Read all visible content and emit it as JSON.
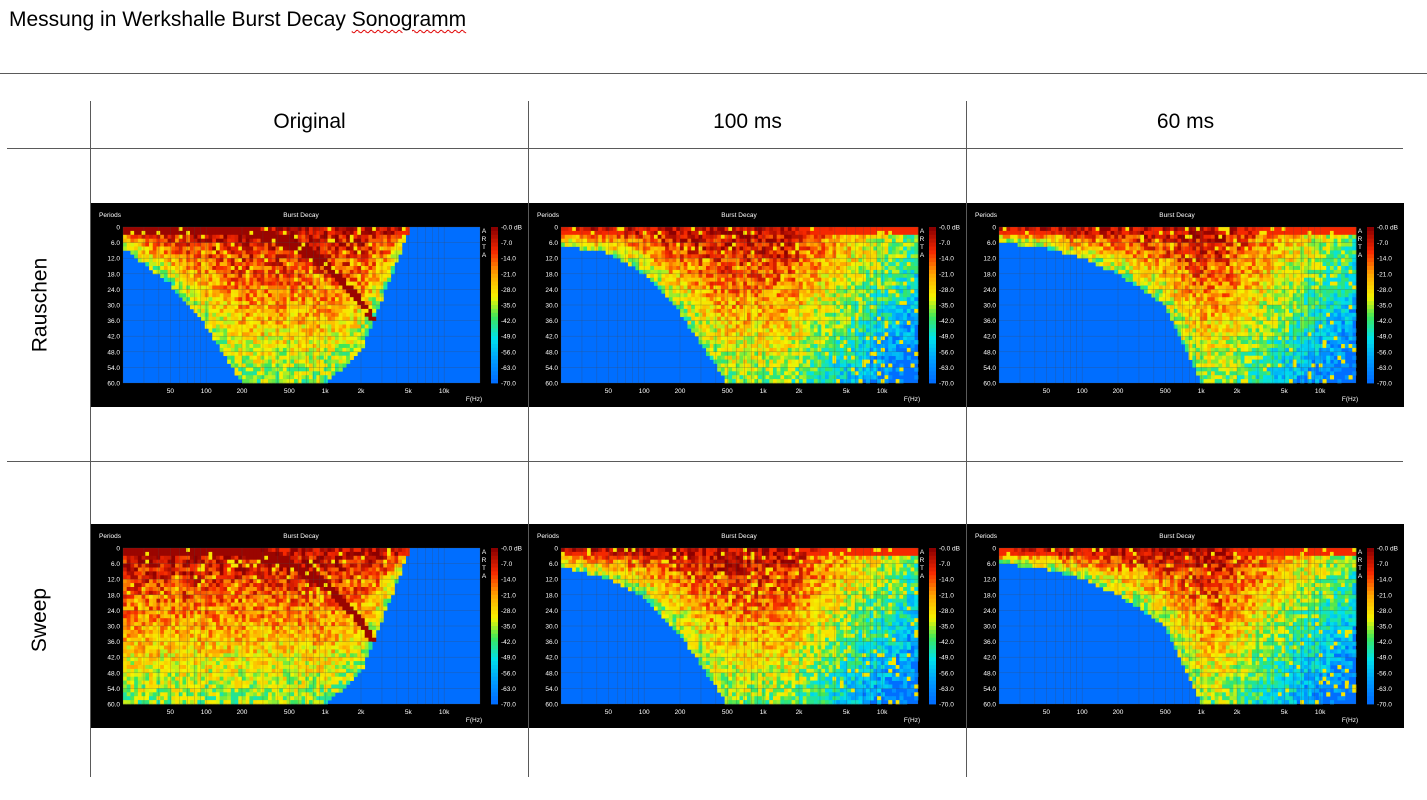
{
  "document": {
    "title_main": "Messung in Werkshalle Burst Decay ",
    "title_flagged": "Sonogramm"
  },
  "table": {
    "columns": [
      "Original",
      "100 ms",
      "60 ms"
    ],
    "rows": [
      "Rauschen",
      "Sweep"
    ]
  },
  "chart_common": {
    "title": "Burst Decay",
    "y_axis_label": "Periods",
    "x_axis_label": "F(Hz)",
    "brand": "ARTA",
    "y_ticks": [
      "0",
      "6.0",
      "12.0",
      "18.0",
      "24.0",
      "30.0",
      "36.0",
      "42.0",
      "48.0",
      "54.0",
      "60.0"
    ],
    "x_ticks": [
      "50",
      "100",
      "200",
      "500",
      "1k",
      "2k",
      "5k",
      "10k"
    ],
    "colorbar_ticks": [
      "-0.0 dB",
      "-7.0",
      "-14.0",
      "-21.0",
      "-28.0",
      "-35.0",
      "-42.0",
      "-49.0",
      "-56.0",
      "-63.0",
      "-70.0"
    ]
  },
  "chart_data": [
    {
      "type": "heatmap",
      "row": "Rauschen",
      "column": "Original",
      "title": "Burst Decay",
      "xlabel": "F(Hz)",
      "ylabel": "Periods",
      "x_scale": "log",
      "xlim": [
        20,
        20000
      ],
      "ylim": [
        0,
        60
      ],
      "zlim_db": [
        -70,
        0
      ],
      "grid": true,
      "decay_boundary": [
        {
          "f": 20,
          "periods": 8
        },
        {
          "f": 50,
          "periods": 22
        },
        {
          "f": 100,
          "periods": 38
        },
        {
          "f": 200,
          "periods": 60
        },
        {
          "f": 500,
          "periods": 60
        },
        {
          "f": 1000,
          "periods": 60
        },
        {
          "f": 2000,
          "periods": 48
        },
        {
          "f": 5000,
          "periods": 2
        }
      ],
      "dark_ridge": [
        {
          "f": 200,
          "periods": 1
        },
        {
          "f": 500,
          "periods": 6
        },
        {
          "f": 1000,
          "periods": 14
        },
        {
          "f": 2000,
          "periods": 28
        },
        {
          "f": 4000,
          "periods": 52
        }
      ],
      "hf_cutoff_hz": 5000
    },
    {
      "type": "heatmap",
      "row": "Rauschen",
      "column": "100 ms",
      "title": "Burst Decay",
      "xlabel": "F(Hz)",
      "ylabel": "Periods",
      "x_scale": "log",
      "xlim": [
        20,
        20000
      ],
      "ylim": [
        0,
        60
      ],
      "zlim_db": [
        -70,
        0
      ],
      "grid": true,
      "decay_boundary": [
        {
          "f": 20,
          "periods": 7
        },
        {
          "f": 50,
          "periods": 10
        },
        {
          "f": 100,
          "periods": 18
        },
        {
          "f": 200,
          "periods": 33
        },
        {
          "f": 500,
          "periods": 60
        },
        {
          "f": 1000,
          "periods": 60
        },
        {
          "f": 2000,
          "periods": 60
        },
        {
          "f": 5000,
          "periods": 60
        }
      ],
      "hf_cutoff_hz": 20000
    },
    {
      "type": "heatmap",
      "row": "Rauschen",
      "column": "60 ms",
      "title": "Burst Decay",
      "xlabel": "F(Hz)",
      "ylabel": "Periods",
      "x_scale": "log",
      "xlim": [
        20,
        20000
      ],
      "ylim": [
        0,
        60
      ],
      "zlim_db": [
        -70,
        0
      ],
      "grid": true,
      "decay_boundary": [
        {
          "f": 20,
          "periods": 6
        },
        {
          "f": 50,
          "periods": 8
        },
        {
          "f": 100,
          "periods": 12
        },
        {
          "f": 200,
          "periods": 18
        },
        {
          "f": 500,
          "periods": 30
        },
        {
          "f": 1000,
          "periods": 60
        },
        {
          "f": 2000,
          "periods": 60
        },
        {
          "f": 5000,
          "periods": 60
        }
      ],
      "hf_cutoff_hz": 20000
    },
    {
      "type": "heatmap",
      "row": "Sweep",
      "column": "Original",
      "title": "Burst Decay",
      "xlabel": "F(Hz)",
      "ylabel": "Periods",
      "x_scale": "log",
      "xlim": [
        20,
        20000
      ],
      "ylim": [
        0,
        60
      ],
      "zlim_db": [
        -70,
        0
      ],
      "grid": true,
      "decay_boundary": [
        {
          "f": 20,
          "periods": 60
        },
        {
          "f": 50,
          "periods": 60
        },
        {
          "f": 100,
          "periods": 60
        },
        {
          "f": 200,
          "periods": 60
        },
        {
          "f": 500,
          "periods": 60
        },
        {
          "f": 1000,
          "periods": 60
        },
        {
          "f": 2000,
          "periods": 48
        },
        {
          "f": 5000,
          "periods": 2
        }
      ],
      "dark_ridge": [
        {
          "f": 200,
          "periods": 1
        },
        {
          "f": 500,
          "periods": 6
        },
        {
          "f": 1000,
          "periods": 14
        },
        {
          "f": 2000,
          "periods": 28
        },
        {
          "f": 4000,
          "periods": 52
        }
      ],
      "hf_cutoff_hz": 5000
    },
    {
      "type": "heatmap",
      "row": "Sweep",
      "column": "100 ms",
      "title": "Burst Decay",
      "xlabel": "F(Hz)",
      "ylabel": "Periods",
      "x_scale": "log",
      "xlim": [
        20,
        20000
      ],
      "ylim": [
        0,
        60
      ],
      "zlim_db": [
        -70,
        0
      ],
      "grid": true,
      "decay_boundary": [
        {
          "f": 20,
          "periods": 7
        },
        {
          "f": 50,
          "periods": 12
        },
        {
          "f": 100,
          "periods": 19
        },
        {
          "f": 200,
          "periods": 33
        },
        {
          "f": 500,
          "periods": 60
        },
        {
          "f": 1000,
          "periods": 60
        },
        {
          "f": 2000,
          "periods": 60
        },
        {
          "f": 5000,
          "periods": 60
        }
      ],
      "hf_cutoff_hz": 20000
    },
    {
      "type": "heatmap",
      "row": "Sweep",
      "column": "60 ms",
      "title": "Burst Decay",
      "xlabel": "F(Hz)",
      "ylabel": "Periods",
      "x_scale": "log",
      "xlim": [
        20,
        20000
      ],
      "ylim": [
        0,
        60
      ],
      "zlim_db": [
        -70,
        0
      ],
      "grid": true,
      "decay_boundary": [
        {
          "f": 20,
          "periods": 6
        },
        {
          "f": 50,
          "periods": 8
        },
        {
          "f": 100,
          "periods": 12
        },
        {
          "f": 200,
          "periods": 18
        },
        {
          "f": 500,
          "periods": 30
        },
        {
          "f": 1000,
          "periods": 60
        },
        {
          "f": 2000,
          "periods": 60
        },
        {
          "f": 5000,
          "periods": 60
        }
      ],
      "hf_cutoff_hz": 20000
    }
  ]
}
